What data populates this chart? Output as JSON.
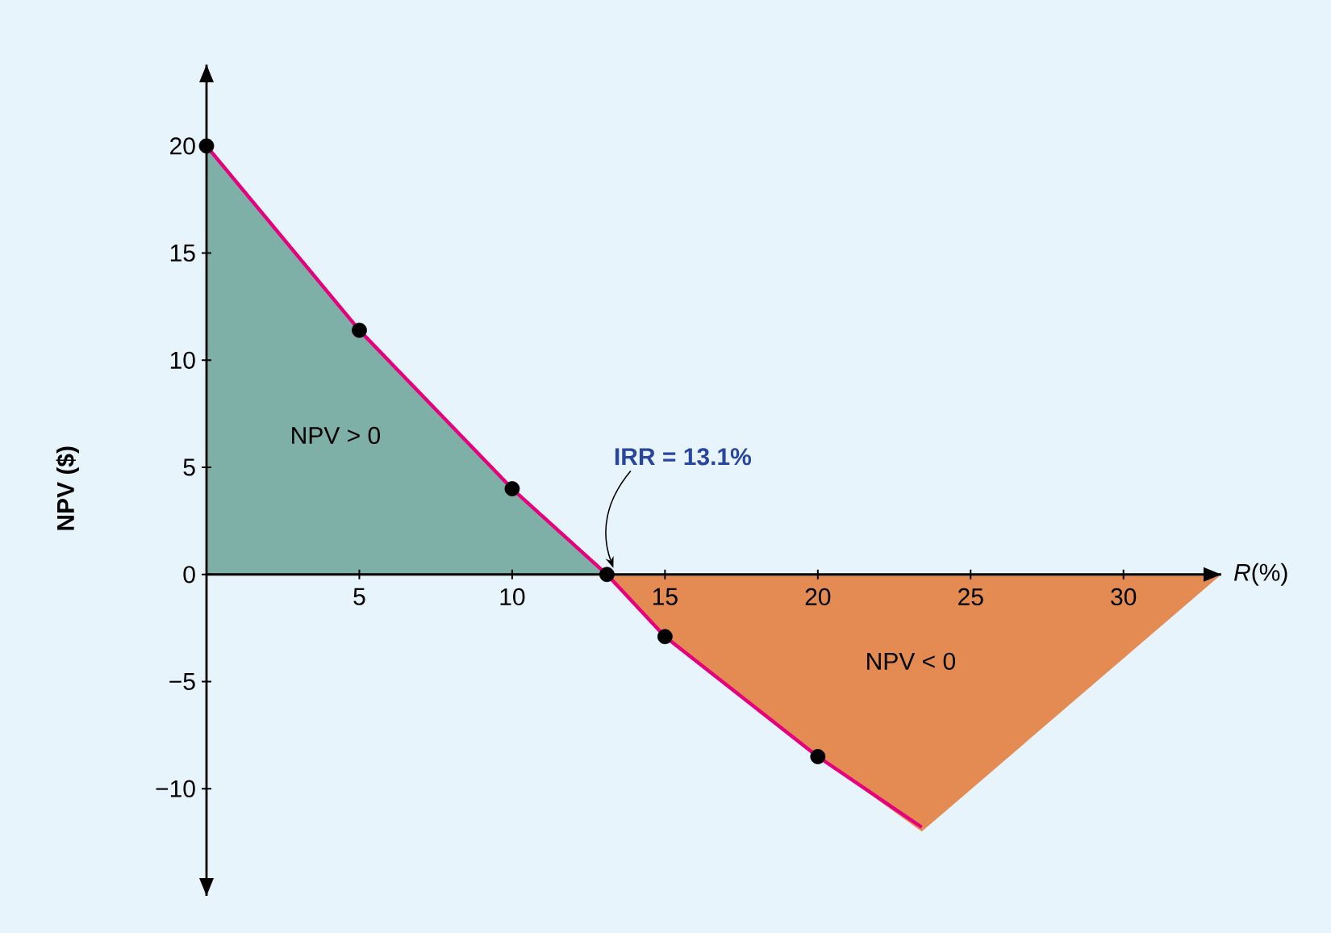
{
  "chart_data": {
    "type": "line",
    "xlabel": "*R*(%)",
    "ylabel": "NPV ($)",
    "xlim": [
      0,
      33.2
    ],
    "ylim": [
      -15,
      23.8
    ],
    "xticks": [
      5,
      10,
      15,
      20,
      25,
      30
    ],
    "yticks": [
      {
        "value": -10,
        "label": "−10"
      },
      {
        "value": -5,
        "label": "−5"
      },
      0,
      5,
      10,
      15,
      20
    ],
    "grid": false,
    "series": [
      {
        "type": "area",
        "color": "#7fb0a8",
        "x": [
          0,
          5,
          10,
          13.1
        ],
        "values": [
          20,
          11.4,
          4,
          0
        ]
      },
      {
        "type": "area",
        "color": "#e38b52",
        "x": [
          13.1,
          15,
          20,
          23.4,
          33.2
        ],
        "values": [
          0,
          -2.9,
          -8.5,
          -12,
          0
        ]
      },
      {
        "color": "#e6007e",
        "x": [
          0,
          5,
          10,
          13.1,
          15,
          20,
          23.4
        ],
        "values": [
          20,
          11.4,
          4,
          0,
          -2.9,
          -8.5,
          -11.8
        ],
        "marker": "none"
      },
      {
        "type": "scatter",
        "color": "#000000",
        "x": [
          0,
          5,
          10,
          13.1,
          15,
          20
        ],
        "values": [
          20,
          11.4,
          4,
          0,
          -2.9,
          -8.5
        ],
        "marker": "circle"
      }
    ],
    "annotations": [
      "NPV > 0",
      "NPV < 0",
      {
        "text": "IRR = 13.1%",
        "x": 13.1,
        "y": 0
      }
    ]
  }
}
